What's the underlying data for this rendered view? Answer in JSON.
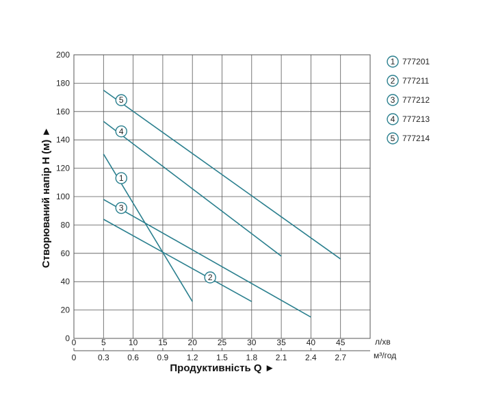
{
  "chart_data": {
    "type": "line",
    "ylabel": "Створюваний напір H (м) ►",
    "xlabel": "Продуктивність  Q  ►",
    "x_unit_primary": "л/хв",
    "x_unit_secondary": "м³/год",
    "xlim": [
      0,
      50
    ],
    "ylim": [
      0,
      200
    ],
    "grid": true,
    "x_ticks_primary": [
      "0",
      "5",
      "10",
      "15",
      "20",
      "25",
      "30",
      "35",
      "40",
      "45"
    ],
    "x_ticks_secondary": [
      "0",
      "0.3",
      "0.6",
      "0.9",
      "1.2",
      "1.5",
      "1.8",
      "2.1",
      "2.4",
      "2.7"
    ],
    "y_ticks": [
      "0",
      "20",
      "40",
      "60",
      "80",
      "100",
      "120",
      "140",
      "160",
      "180",
      "200"
    ],
    "legend_position": "right",
    "series": [
      {
        "name": "777201",
        "marker": "1",
        "x": [
          5,
          20
        ],
        "y": [
          130,
          26
        ],
        "marker_at": [
          8,
          113
        ]
      },
      {
        "name": "777211",
        "marker": "2",
        "x": [
          5,
          30
        ],
        "y": [
          84,
          26
        ],
        "marker_at": [
          23,
          43
        ]
      },
      {
        "name": "777212",
        "marker": "3",
        "x": [
          5,
          40
        ],
        "y": [
          98,
          15
        ],
        "marker_at": [
          8,
          92
        ]
      },
      {
        "name": "777213",
        "marker": "4",
        "x": [
          5,
          35
        ],
        "y": [
          153,
          58
        ],
        "marker_at": [
          8,
          146
        ]
      },
      {
        "name": "777214",
        "marker": "5",
        "x": [
          5,
          45
        ],
        "y": [
          175,
          56
        ],
        "marker_at": [
          8,
          168
        ]
      }
    ],
    "line_color": "#2a7f8e"
  }
}
